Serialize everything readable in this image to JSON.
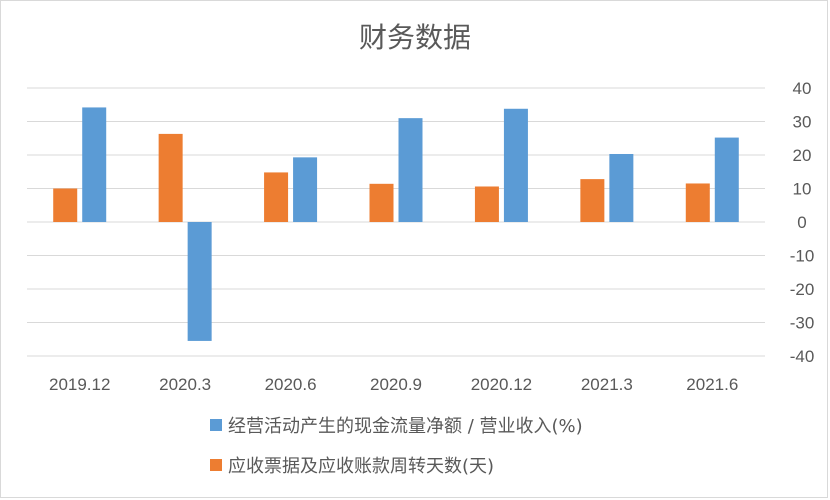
{
  "chart_data": {
    "type": "bar",
    "title": "财务数据",
    "categories": [
      "2019.12",
      "2020.3",
      "2020.6",
      "2020.9",
      "2020.12",
      "2021.3",
      "2021.6"
    ],
    "series": [
      {
        "name": "经营活动产生的现金流量净额 / 营业收入(%)",
        "color": "#5b9bd5",
        "values": [
          34.2,
          -35.5,
          19.3,
          31.0,
          33.8,
          20.3,
          25.2
        ]
      },
      {
        "name": "应收票据及应收账款周转天数(天)",
        "color": "#ed7d31",
        "values": [
          10.0,
          26.3,
          14.8,
          11.4,
          10.6,
          12.8,
          11.5
        ]
      }
    ],
    "bar_order": [
      "应收票据及应收账款周转天数(天)",
      "经营活动产生的现金流量净额 / 营业收入(%)"
    ],
    "ylim": [
      -40,
      40
    ],
    "yticks": [
      40,
      30,
      20,
      10,
      0,
      -10,
      -20,
      -30,
      -40
    ],
    "y_axis_side": "right",
    "grid": true,
    "legend_position": "bottom"
  }
}
